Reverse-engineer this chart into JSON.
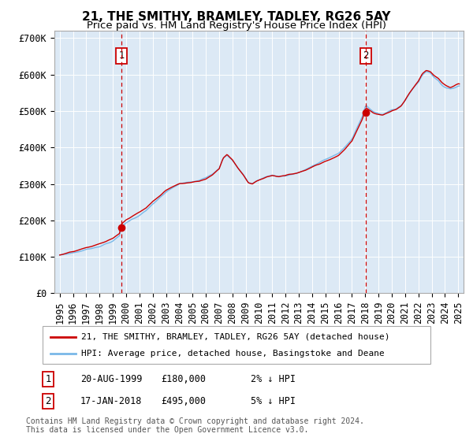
{
  "title": "21, THE SMITHY, BRAMLEY, TADLEY, RG26 5AY",
  "subtitle": "Price paid vs. HM Land Registry's House Price Index (HPI)",
  "legend_line1": "21, THE SMITHY, BRAMLEY, TADLEY, RG26 5AY (detached house)",
  "legend_line2": "HPI: Average price, detached house, Basingstoke and Deane",
  "annotation1_date": "20-AUG-1999",
  "annotation1_price": 180000,
  "annotation1_hpi": "2% ↓ HPI",
  "annotation1_year": 1999.64,
  "annotation2_date": "17-JAN-2018",
  "annotation2_price": 495000,
  "annotation2_hpi": "5% ↓ HPI",
  "annotation2_year": 2018.04,
  "ylabel_ticks": [
    "£0",
    "£100K",
    "£200K",
    "£300K",
    "£400K",
    "£500K",
    "£600K",
    "£700K"
  ],
  "ytick_values": [
    0,
    100000,
    200000,
    300000,
    400000,
    500000,
    600000,
    700000
  ],
  "ymax": 720000,
  "hpi_color": "#7ab8e8",
  "price_color": "#cc0000",
  "vline_color": "#cc0000",
  "bg_color": "#dce9f5",
  "grid_color": "#ffffff",
  "footer": "Contains HM Land Registry data © Crown copyright and database right 2024.\nThis data is licensed under the Open Government Licence v3.0.",
  "title_fontsize": 11,
  "subtitle_fontsize": 9.5,
  "tick_fontsize": 8.5
}
